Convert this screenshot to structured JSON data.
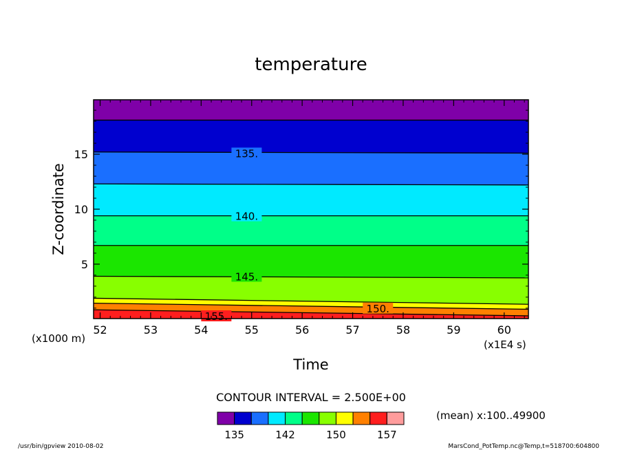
{
  "chart_data": {
    "type": "heatmap",
    "title": "temperature",
    "xlabel": "Time",
    "ylabel": "Z-coordinate",
    "x_unit": "(x1E4 s)",
    "y_unit": "(x1000 m)",
    "xlim": [
      51.87,
      60.48
    ],
    "ylim": [
      0.05,
      19.95
    ],
    "x_ticks": [
      52,
      53,
      54,
      55,
      56,
      57,
      58,
      59,
      60
    ],
    "y_ticks": [
      5,
      10,
      15
    ],
    "contour_interval_label": "CONTOUR INTERVAL = 2.500E+00",
    "contour_levels": [
      132.5,
      135,
      137.5,
      140,
      142.5,
      145,
      147.5,
      150,
      152.5,
      155
    ],
    "contour_labels": [
      {
        "value": 135,
        "text": "135.",
        "x": 54.9,
        "y": 15.1
      },
      {
        "value": 140,
        "text": "140.",
        "x": 54.9,
        "y": 9.4
      },
      {
        "value": 145,
        "text": "145.",
        "x": 54.9,
        "y": 3.9
      },
      {
        "value": 150,
        "text": "150.",
        "x": 57.5,
        "y": 1.0
      },
      {
        "value": 155,
        "text": "155.",
        "x": 54.3,
        "y": 0.3
      }
    ],
    "bands": [
      {
        "color": "#7f00a8",
        "z_lower": [
          18.1,
          18.1
        ],
        "z_upper": [
          19.95,
          19.95
        ]
      },
      {
        "color": "#0000cf",
        "z_lower": [
          15.2,
          15.1
        ],
        "z_upper": [
          18.1,
          18.1
        ]
      },
      {
        "color": "#1a6fff",
        "z_lower": [
          12.3,
          12.2
        ],
        "z_upper": [
          15.2,
          15.1
        ]
      },
      {
        "color": "#00eaff",
        "z_lower": [
          9.4,
          9.4
        ],
        "z_upper": [
          12.3,
          12.2
        ]
      },
      {
        "color": "#00ff88",
        "z_lower": [
          6.7,
          6.7
        ],
        "z_upper": [
          9.4,
          9.4
        ]
      },
      {
        "color": "#1be600",
        "z_lower": [
          3.9,
          3.75
        ],
        "z_upper": [
          6.7,
          6.7
        ]
      },
      {
        "color": "#88ff00",
        "z_lower": [
          1.9,
          1.35
        ],
        "z_upper": [
          3.9,
          3.75
        ]
      },
      {
        "color": "#ffff00",
        "z_lower": [
          1.45,
          0.9
        ],
        "z_upper": [
          1.9,
          1.35
        ]
      },
      {
        "color": "#ff8000",
        "z_lower": [
          0.85,
          0.3
        ],
        "z_upper": [
          1.45,
          0.9
        ]
      },
      {
        "color": "#ff1e1e",
        "z_lower": [
          0.05,
          0.05
        ],
        "z_upper": [
          0.85,
          0.3
        ]
      }
    ],
    "colorbar": {
      "colors": [
        "#7f00a8",
        "#0000cf",
        "#1a6fff",
        "#00eaff",
        "#00ff88",
        "#1be600",
        "#88ff00",
        "#ffff00",
        "#ff8000",
        "#ff1e1e",
        "#ff9c9c"
      ],
      "tick_labels": [
        "135",
        "142",
        "150",
        "157"
      ]
    }
  },
  "annotations": {
    "mean_note": "(mean) x:100..49900",
    "footer_left": "/usr/bin/gpview   2010-08-02",
    "footer_right": "MarsCond_PotTemp.nc@Temp,t=518700:604800"
  }
}
